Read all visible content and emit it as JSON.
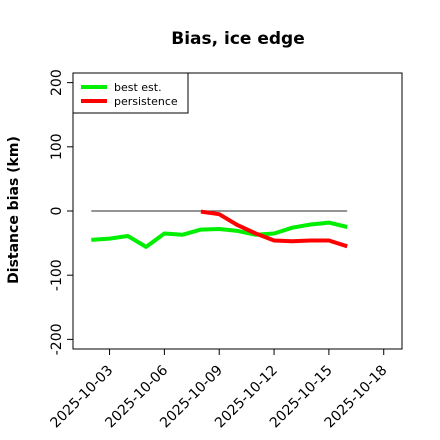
{
  "chart_data": {
    "type": "line",
    "title": "Bias, ice edge",
    "xlabel": "",
    "ylabel": "Distance bias (km)",
    "x_type": "date",
    "xlim": [
      "2025-10-01",
      "2025-10-19"
    ],
    "ylim": [
      -215,
      215
    ],
    "x_ticks": [
      "2025-10-03",
      "2025-10-06",
      "2025-10-09",
      "2025-10-12",
      "2025-10-15",
      "2025-10-18"
    ],
    "y_ticks": [
      -200,
      -100,
      0,
      100,
      200
    ],
    "y_tick_labels": [
      "-200",
      "-100",
      "0",
      "100",
      "200"
    ],
    "legend_position": "top-left",
    "grid": false,
    "reference_line": {
      "y": 0,
      "x_range": [
        "2025-10-02",
        "2025-10-16"
      ],
      "color": "#555555"
    },
    "series": [
      {
        "name": "best est.",
        "color": "#00ee00",
        "x": [
          "2025-10-02",
          "2025-10-03",
          "2025-10-04",
          "2025-10-05",
          "2025-10-06",
          "2025-10-07",
          "2025-10-08",
          "2025-10-09",
          "2025-10-10",
          "2025-10-11",
          "2025-10-12",
          "2025-10-13",
          "2025-10-14",
          "2025-10-15",
          "2025-10-16"
        ],
        "y": [
          -45,
          -43,
          -39,
          -56,
          -35,
          -37,
          -29,
          -28,
          -31,
          -37,
          -35,
          -26,
          -21,
          -18,
          -25
        ]
      },
      {
        "name": "persistence",
        "color": "#ff0000",
        "x": [
          "2025-10-08",
          "2025-10-09",
          "2025-10-10",
          "2025-10-11",
          "2025-10-12",
          "2025-10-13",
          "2025-10-14",
          "2025-10-15",
          "2025-10-16"
        ],
        "y": [
          -1,
          -5,
          -22,
          -35,
          -46,
          -47,
          -46,
          -46,
          -55
        ]
      }
    ]
  }
}
